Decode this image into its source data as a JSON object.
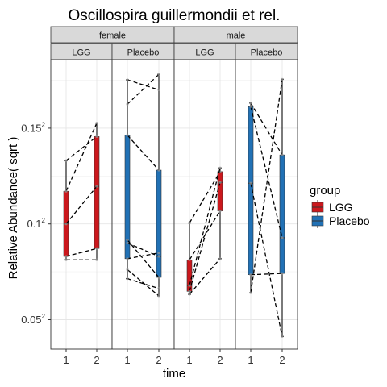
{
  "chart_data": {
    "type": "boxplot",
    "title": "Oscillospira guillermondii et rel.",
    "xlabel": "time",
    "ylabel": "Relative Abundance( sqrt )",
    "y_scale": "sqrt",
    "ylim": [
      0.0012,
      0.0345
    ],
    "y_ticks": [
      {
        "value": 0.0025,
        "base": "0.05",
        "exp": "2"
      },
      {
        "value": 0.01,
        "base": "0.1",
        "exp": "2"
      },
      {
        "value": 0.0225,
        "base": "0.15",
        "exp": "2"
      }
    ],
    "x_categories": [
      "1",
      "2"
    ],
    "legend": {
      "title": "group",
      "placement": "right",
      "entries": [
        {
          "name": "LGG",
          "color": "#cb181d"
        },
        {
          "name": "Placebo",
          "color": "#2171b5"
        }
      ]
    },
    "facets": {
      "outer_labels": [
        "female",
        "male"
      ],
      "panels": [
        {
          "sex": "female",
          "group": "LGG",
          "boxes": [
            {
              "time": "1",
              "min": 0.0066,
              "q1": 0.0069,
              "median": 0.01,
              "q3": 0.0137,
              "max": 0.0177
            },
            {
              "time": "2",
              "min": 0.0066,
              "q1": 0.0076,
              "median": 0.0143,
              "q3": 0.0212,
              "max": 0.0233
            }
          ],
          "subjects": [
            [
              0.0066,
              0.0066
            ],
            [
              0.0069,
              0.0076
            ],
            [
              0.01,
              0.0143
            ],
            [
              0.0137,
              0.0233
            ],
            [
              0.0177,
              0.0212
            ]
          ]
        },
        {
          "sex": "female",
          "group": "Placebo",
          "boxes": [
            {
              "time": "1",
              "min": 0.0051,
              "q1": 0.0067,
              "median": 0.0081,
              "q3": 0.0214,
              "max": 0.0307
            },
            {
              "time": "2",
              "min": 0.0039,
              "q1": 0.0052,
              "median": 0.0069,
              "q3": 0.0164,
              "max": 0.0317
            }
          ],
          "subjects": [
            [
              0.0051,
              0.0044
            ],
            [
              0.0058,
              0.0039
            ],
            [
              0.0067,
              0.0072
            ],
            [
              0.0081,
              0.0069
            ],
            [
              0.0084,
              0.0052
            ],
            [
              0.0214,
              0.0164
            ],
            [
              0.0264,
              0.0317
            ],
            [
              0.0307,
              0.0289
            ]
          ]
        },
        {
          "sex": "male",
          "group": "LGG",
          "boxes": [
            {
              "time": "1",
              "min": 0.004,
              "q1": 0.0042,
              "median": 0.0046,
              "q3": 0.0066,
              "max": 0.0101
            },
            {
              "time": "2",
              "min": 0.0067,
              "q1": 0.0114,
              "median": 0.0148,
              "q3": 0.0162,
              "max": 0.0167
            }
          ],
          "subjects": [
            [
              0.004,
              0.0067
            ],
            [
              0.0042,
              0.0148
            ],
            [
              0.0101,
              0.0162
            ],
            [
              0.0066,
              0.0114
            ],
            [
              0.0046,
              0.0167
            ]
          ]
        },
        {
          "sex": "male",
          "group": "Placebo",
          "boxes": [
            {
              "time": "1",
              "min": 0.0041,
              "q1": 0.0054,
              "median": 0.0147,
              "q3": 0.026,
              "max": 0.0266
            },
            {
              "time": "2",
              "min": 0.0017,
              "q1": 0.0055,
              "median": 0.0086,
              "q3": 0.0185,
              "max": 0.0308
            }
          ],
          "subjects": [
            [
              0.0041,
              0.0308
            ],
            [
              0.0266,
              0.0185
            ],
            [
              0.0147,
              0.0017
            ],
            [
              0.026,
              0.0086
            ],
            [
              0.0054,
              0.0055
            ]
          ]
        }
      ]
    }
  }
}
